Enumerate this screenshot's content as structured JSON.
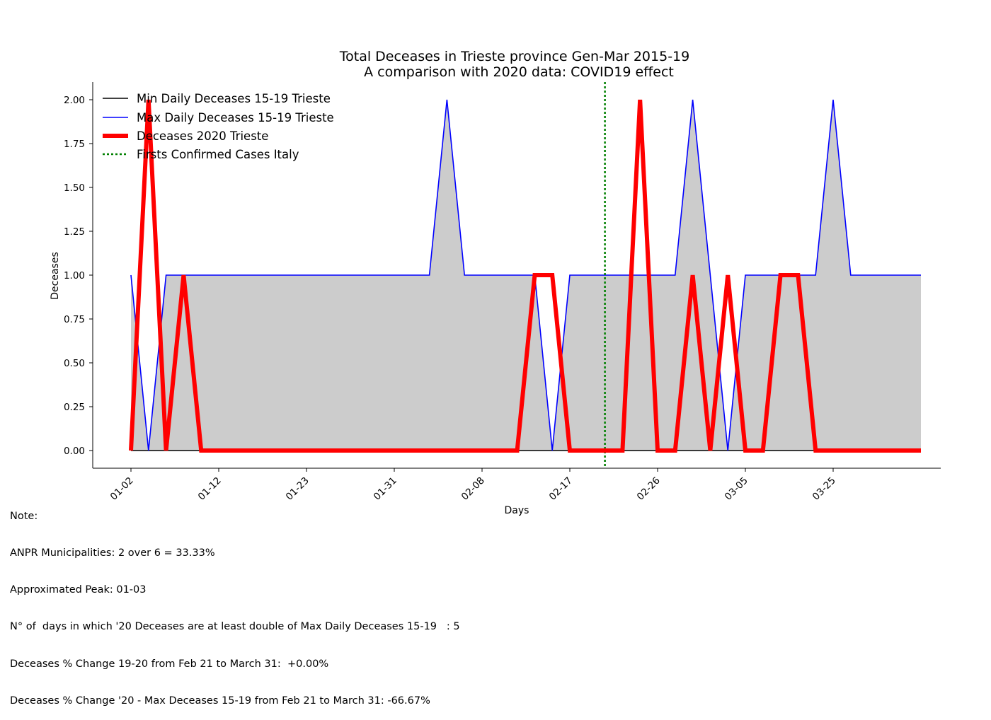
{
  "chart_data": {
    "type": "line",
    "title": "Total Deceases in Trieste province Gen-Mar 2015-19",
    "subtitle": "A comparison with 2020 data: COVID19 effect",
    "xlabel": "Days",
    "ylabel": "Deceases",
    "ylim": [
      -0.1,
      2.1
    ],
    "yticks": [
      "0.00",
      "0.25",
      "0.50",
      "0.75",
      "1.00",
      "1.25",
      "1.50",
      "1.75",
      "2.00"
    ],
    "ytick_values": [
      0,
      0.25,
      0.5,
      0.75,
      1.0,
      1.25,
      1.5,
      1.75,
      2.0
    ],
    "xticks": [
      {
        "index": 0,
        "label": "01-02"
      },
      {
        "index": 5,
        "label": "01-12"
      },
      {
        "index": 10,
        "label": "01-23"
      },
      {
        "index": 15,
        "label": "01-31"
      },
      {
        "index": 20,
        "label": "02-08"
      },
      {
        "index": 25,
        "label": "02-17"
      },
      {
        "index": 30,
        "label": "02-26"
      },
      {
        "index": 35,
        "label": "03-05"
      },
      {
        "index": 40,
        "label": "03-25"
      }
    ],
    "legend_position": "top-left",
    "vline": {
      "name": "Firsts Confirmed Cases Italy",
      "index": 27,
      "color": "#008000"
    },
    "series": [
      {
        "name": "Min Daily Deceases 15-19 Trieste",
        "color": "#000000",
        "values": [
          0,
          0,
          0,
          0,
          0,
          0,
          0,
          0,
          0,
          0,
          0,
          0,
          0,
          0,
          0,
          0,
          0,
          0,
          0,
          0,
          0,
          0,
          0,
          0,
          0,
          0,
          0,
          0,
          0,
          0,
          0,
          0,
          0,
          0,
          0,
          0,
          0,
          0,
          0,
          0,
          0,
          0,
          0,
          0,
          0,
          0
        ]
      },
      {
        "name": "Max Daily Deceases 15-19 Trieste",
        "color": "#0000ff",
        "values": [
          1,
          0,
          1,
          1,
          1,
          1,
          1,
          1,
          1,
          1,
          1,
          1,
          1,
          1,
          1,
          1,
          1,
          1,
          2,
          1,
          1,
          1,
          1,
          1,
          0,
          1,
          1,
          1,
          1,
          1,
          1,
          1,
          2,
          1,
          0,
          1,
          1,
          1,
          1,
          1,
          2,
          1,
          1,
          1,
          1,
          1
        ]
      },
      {
        "name": "Deceases 2020 Trieste",
        "color": "#ff0000",
        "values": [
          0,
          2,
          0,
          1,
          0,
          0,
          0,
          0,
          0,
          0,
          0,
          0,
          0,
          0,
          0,
          0,
          0,
          0,
          0,
          0,
          0,
          0,
          0,
          1,
          1,
          0,
          0,
          0,
          0,
          2,
          0,
          0,
          1,
          0,
          1,
          0,
          0,
          1,
          1,
          0,
          0,
          0,
          0,
          0,
          0,
          0
        ]
      }
    ]
  },
  "notes": {
    "heading": "Note:",
    "line1": "ANPR Municipalities: 2 over 6 = 33.33%",
    "line2": "Approximated Peak: 01-03",
    "line3": "N° of  days in which '20 Deceases are at least double of Max Daily Deceases 15-19   : 5",
    "line4": "Deceases % Change 19-20 from Feb 21 to March 31:  +0.00%",
    "line5": "Deceases % Change '20 - Max Deceases 15-19 from Feb 21 to March 31: -66.67%"
  }
}
